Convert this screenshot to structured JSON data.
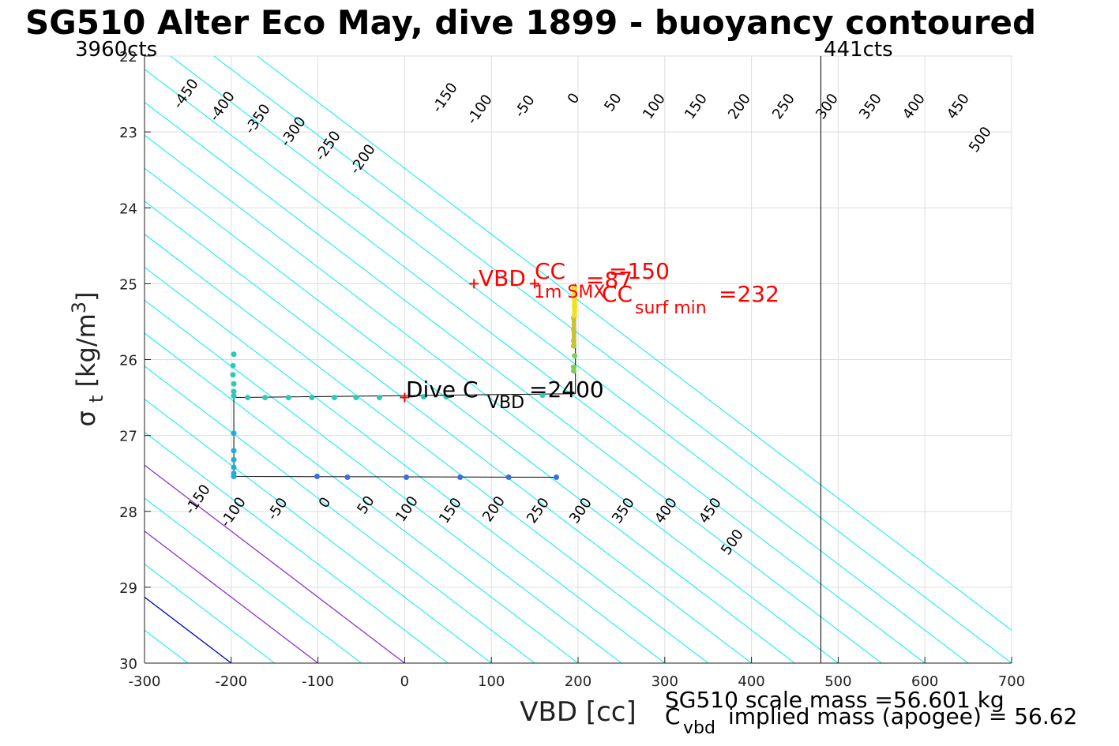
{
  "chart_data": {
    "type": "line",
    "title": "SG510 Alter Eco May, dive 1899 - buoyancy contoured",
    "xlabel": "VBD [cc]",
    "ylabel": "σ_t [kg/m^3]",
    "xlim": [
      -300,
      700
    ],
    "ylim": [
      22,
      30
    ],
    "y_reversed": true,
    "grid": true,
    "xticks": [
      -300,
      -200,
      -100,
      0,
      100,
      200,
      300,
      400,
      500,
      600,
      700
    ],
    "yticks": [
      22,
      23,
      24,
      25,
      26,
      27,
      28,
      29,
      30
    ],
    "contour_step_x": 115,
    "contour_levels": [
      -450,
      -400,
      -350,
      -300,
      -250,
      -200,
      -150,
      -100,
      -50,
      0,
      50,
      100,
      150,
      200,
      250,
      300,
      350,
      400,
      450,
      500
    ],
    "contour_lines": [
      {
        "level": 0,
        "x_at_30": -200,
        "color": "#0000cc",
        "label": "0"
      },
      {
        "level": 100,
        "x_at_30": -100,
        "color": "#9933cc",
        "label": "100"
      },
      {
        "level": 200,
        "x_at_30": 0,
        "color": "#9933cc",
        "label": "200"
      }
    ],
    "contour_labels_top": [
      "-450",
      "-400",
      "-350",
      "-300",
      "-250",
      "-200",
      "-150",
      "-100",
      "-50",
      "0",
      "50",
      "100",
      "150",
      "200",
      "250",
      "300",
      "350",
      "400",
      "450",
      "500"
    ],
    "contour_labels_bottom": [
      "-150",
      "-100",
      "-50",
      "0",
      "50",
      "100",
      "150",
      "200",
      "250",
      "300",
      "350",
      "400",
      "450",
      "500"
    ],
    "vertical_line_x": 480,
    "limit_labels": {
      "left": "3960cts",
      "right": "441cts"
    },
    "path_line": [
      {
        "x": -197,
        "y": 26.5
      },
      {
        "x": 197,
        "y": 26.45
      },
      {
        "x": 197,
        "y": 25.0
      },
      {
        "x": 197,
        "y": 26.45
      },
      {
        "x": -197,
        "y": 26.5
      },
      {
        "x": -197,
        "y": 27.54
      },
      {
        "x": 175,
        "y": 27.55
      }
    ],
    "series": [
      {
        "color": "#2ec9b8",
        "points": [
          {
            "x": -197,
            "y": 25.93
          },
          {
            "x": -198,
            "y": 26.08
          },
          {
            "x": -198,
            "y": 26.2
          },
          {
            "x": -197,
            "y": 26.32
          },
          {
            "x": -197,
            "y": 26.42
          },
          {
            "x": -197,
            "y": 26.48
          },
          {
            "x": -181,
            "y": 26.5
          },
          {
            "x": -161,
            "y": 26.5
          },
          {
            "x": -134,
            "y": 26.5
          },
          {
            "x": -107,
            "y": 26.5
          },
          {
            "x": -81,
            "y": 26.5
          },
          {
            "x": -56,
            "y": 26.5
          },
          {
            "x": -29,
            "y": 26.5
          },
          {
            "x": 22,
            "y": 26.49
          },
          {
            "x": 48,
            "y": 26.49
          },
          {
            "x": 159,
            "y": 26.47
          }
        ]
      },
      {
        "color": "#1eb0d4",
        "points": [
          {
            "x": -197,
            "y": 26.97
          },
          {
            "x": -197,
            "y": 27.2
          },
          {
            "x": -197,
            "y": 27.32
          },
          {
            "x": -197,
            "y": 27.42
          },
          {
            "x": -197,
            "y": 27.5
          },
          {
            "x": -197,
            "y": 27.54
          }
        ]
      },
      {
        "color": "#3a6fe0",
        "points": [
          {
            "x": -101,
            "y": 27.54
          },
          {
            "x": -66,
            "y": 27.55
          },
          {
            "x": 2,
            "y": 27.55
          },
          {
            "x": 64,
            "y": 27.55
          },
          {
            "x": 120,
            "y": 27.55
          },
          {
            "x": 175,
            "y": 27.55
          }
        ]
      },
      {
        "color": "#7fcf55",
        "points": [
          {
            "x": 195,
            "y": 25.82
          },
          {
            "x": 196,
            "y": 25.95
          },
          {
            "x": 195,
            "y": 26.1
          },
          {
            "x": 195,
            "y": 26.15
          }
        ]
      },
      {
        "color": "#c9c235",
        "points": [
          {
            "x": 195,
            "y": 25.45
          },
          {
            "x": 195,
            "y": 25.6
          },
          {
            "x": 195,
            "y": 25.75
          }
        ]
      },
      {
        "color": "#f2dc1a",
        "points": [
          {
            "x": 196,
            "y": 25.05
          },
          {
            "x": 196,
            "y": 25.15
          },
          {
            "x": 196,
            "y": 25.3
          }
        ]
      }
    ],
    "markers": [
      {
        "x": 80,
        "y": 25.0,
        "color": "#ff0000"
      },
      {
        "x": 150,
        "y": 25.0,
        "color": "#ff0000"
      },
      {
        "x": 0,
        "y": 26.5,
        "color": "#ff0000"
      }
    ],
    "annotations": [
      {
        "text": "VBD",
        "sub": "1m SMX",
        "color": "#ff0000"
      },
      {
        "text": "CC",
        "sub": "",
        "suffix": "=150",
        "color": "#ff0000"
      },
      {
        "text": "=87",
        "sub": "",
        "color": "#ff0000"
      },
      {
        "text": "CC",
        "sub": "surf min",
        "suffix": "=232",
        "color": "#ff0000"
      },
      {
        "text": "Dive C",
        "sub": "VBD",
        "suffix": "=2400",
        "color": "#000000"
      }
    ],
    "footer_lines": [
      "SG510 scale mass =56.601 kg",
      "C",
      "vbd",
      "implied mass (apogee) = 56.62"
    ]
  }
}
